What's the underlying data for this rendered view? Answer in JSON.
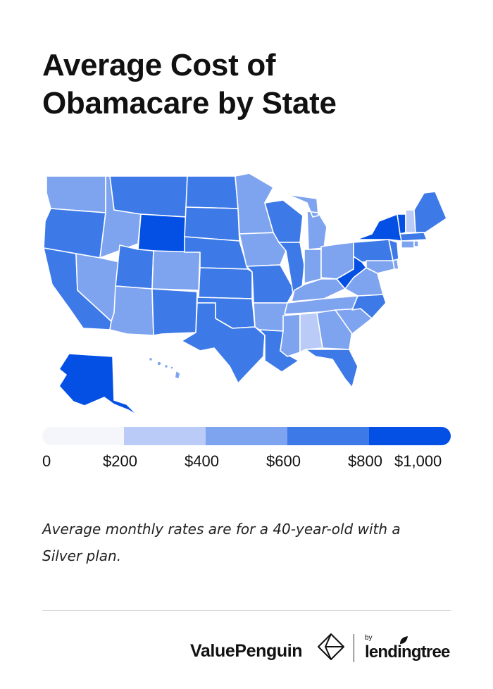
{
  "title_line1": "Average Cost of",
  "title_line2": "Obamacare by State",
  "legend": {
    "colors": [
      "#f4f6fb",
      "#b9cbf6",
      "#7ea3ef",
      "#3d7ae8",
      "#0550e4"
    ],
    "labels": [
      "0",
      "$200",
      "$400",
      "$600",
      "$800",
      "$1,000"
    ]
  },
  "note": "Average monthly rates are for a 40-year-old with a Silver plan.",
  "footer": {
    "brand": "ValuePenguin",
    "by": "by",
    "partner": "lendingtree"
  },
  "colors": {
    "border": "#ffffff",
    "dark": "#0550e4",
    "mid": "#3d7ae8",
    "light": "#7ea3ef",
    "pale": "#b9cbf6"
  },
  "icons": [
    "valuepenguin-logo-icon",
    "lendingtree-leaf-icon"
  ]
}
